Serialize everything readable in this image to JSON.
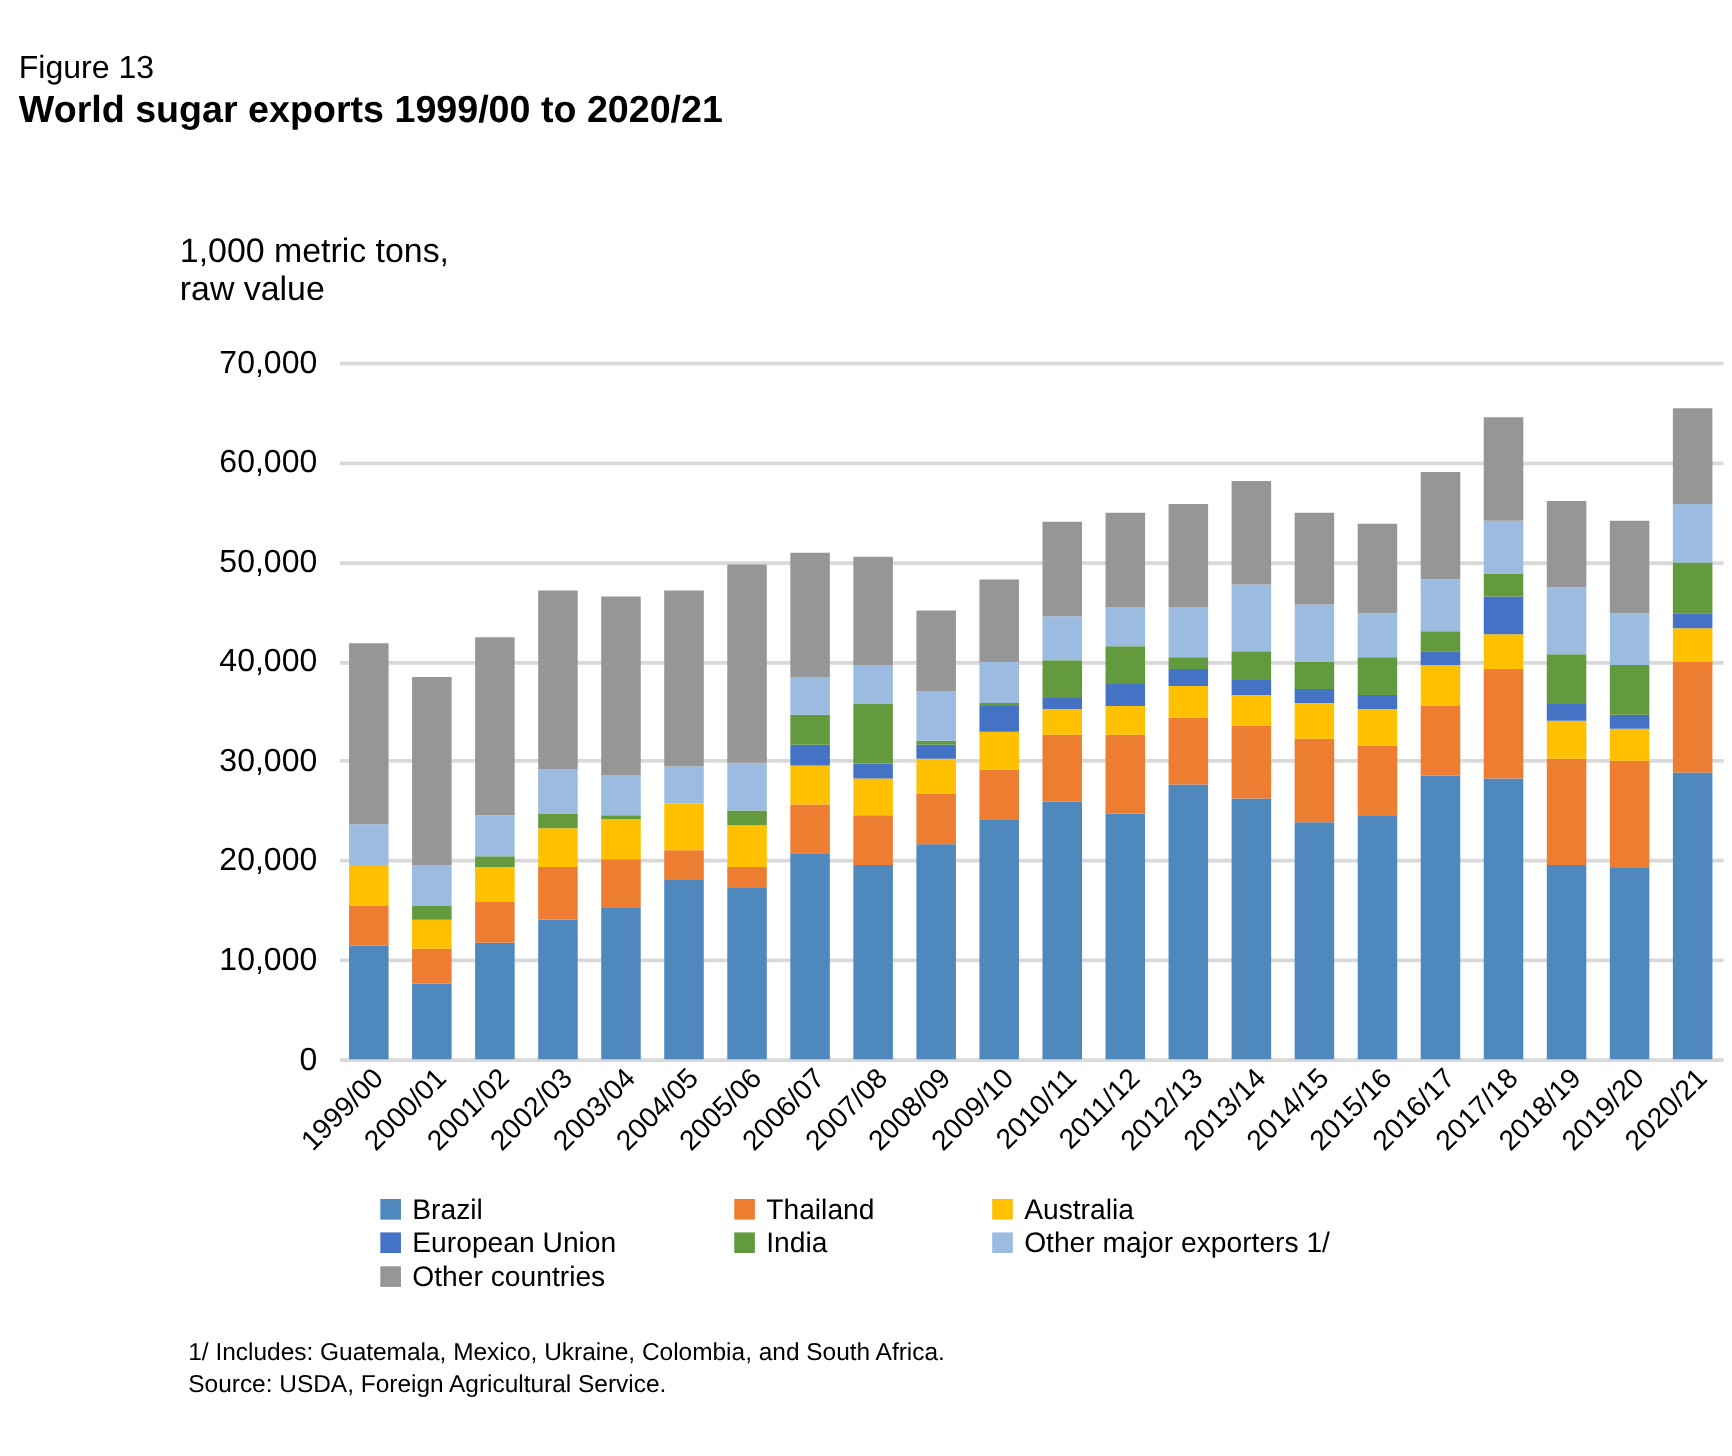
{
  "chart_data": {
    "type": "bar",
    "title": "Figure 13",
    "subtitle": "World sugar exports 1999/00 to 2020/21",
    "ylabel": "1,000 metric tons,\n   raw value",
    "categories": [
      "1999/00",
      "2000/01",
      "2001/02",
      "2002/03",
      "2003/04",
      "2004/05",
      "2005/06",
      "2006/07",
      "2007/08",
      "2008/09",
      "2009/10",
      "2010/11",
      "2011/12",
      "2012/13",
      "2013/14",
      "2014/15",
      "2015/16",
      "2016/17",
      "2017/18",
      "2018/19",
      "2019/20",
      "2020/21"
    ],
    "stacked": true,
    "series": [
      {
        "name": "Brazil",
        "color": "#4f88bd",
        "values": [
          11400,
          7600,
          11700,
          14000,
          15200,
          18000,
          17200,
          20700,
          19500,
          21600,
          24100,
          25900,
          24700,
          27600,
          26200,
          23800,
          24500,
          28500,
          28200,
          19500,
          19200,
          28800
        ]
      },
      {
        "name": "Thailand",
        "color": "#ed7d31",
        "values": [
          4000,
          3500,
          4100,
          5300,
          4900,
          3000,
          2100,
          4900,
          5000,
          5100,
          5000,
          6700,
          7900,
          6700,
          7300,
          8400,
          7000,
          7000,
          11000,
          10700,
          10800,
          11100
        ]
      },
      {
        "name": "Australia",
        "color": "#ffc000",
        "values": [
          4100,
          2900,
          3500,
          3900,
          4000,
          4700,
          4200,
          3900,
          3700,
          3500,
          3800,
          2600,
          2900,
          3200,
          3100,
          3600,
          3700,
          4100,
          3500,
          3800,
          3200,
          3400
        ]
      },
      {
        "name": "European Union",
        "color": "#4472c4",
        "values": [
          0,
          0,
          0,
          0,
          0,
          0,
          0,
          2100,
          1500,
          1400,
          2600,
          1100,
          2200,
          1700,
          1500,
          1400,
          1400,
          1400,
          3800,
          1700,
          1400,
          1500
        ]
      },
      {
        "name": "India",
        "color": "#629a3d",
        "values": [
          0,
          1400,
          1100,
          1500,
          400,
          0,
          1500,
          3000,
          6000,
          400,
          300,
          3800,
          3800,
          1200,
          2900,
          2700,
          3800,
          2000,
          2300,
          5000,
          5000,
          5100
        ]
      },
      {
        "name": "Other major exporters 1/",
        "color": "#9bbbe0",
        "values": [
          4100,
          4100,
          4100,
          4400,
          4000,
          3700,
          4800,
          3800,
          3900,
          5000,
          4100,
          4400,
          3900,
          5000,
          6700,
          5800,
          4400,
          5200,
          5300,
          6700,
          5200,
          5900
        ]
      },
      {
        "name": "Other countries",
        "color": "#969696",
        "values": [
          18200,
          18900,
          17900,
          18000,
          18000,
          17700,
          19900,
          12500,
          10900,
          8100,
          8300,
          9500,
          9500,
          10400,
          10400,
          9200,
          9000,
          10800,
          10400,
          8700,
          9300,
          9600
        ]
      }
    ],
    "ylim": [
      0,
      70000
    ],
    "yticks": [
      0,
      {
        "value": 10000,
        "label": "10,000"
      },
      {
        "value": 20000,
        "label": "20,000"
      },
      {
        "value": 30000,
        "label": "30,000"
      },
      {
        "value": 40000,
        "label": "40,000"
      },
      {
        "value": 50000,
        "label": "50,000"
      },
      {
        "value": 60000,
        "label": "60,000"
      },
      {
        "value": 70000,
        "label": "70,000"
      }
    ],
    "grid": "y",
    "legend": "bottom",
    "annotations": [
      "1/ Includes: Guatemala, Mexico, Ukraine, Colombia, and South Africa.",
      "Source: USDA, Foreign Agricultural Service."
    ]
  }
}
